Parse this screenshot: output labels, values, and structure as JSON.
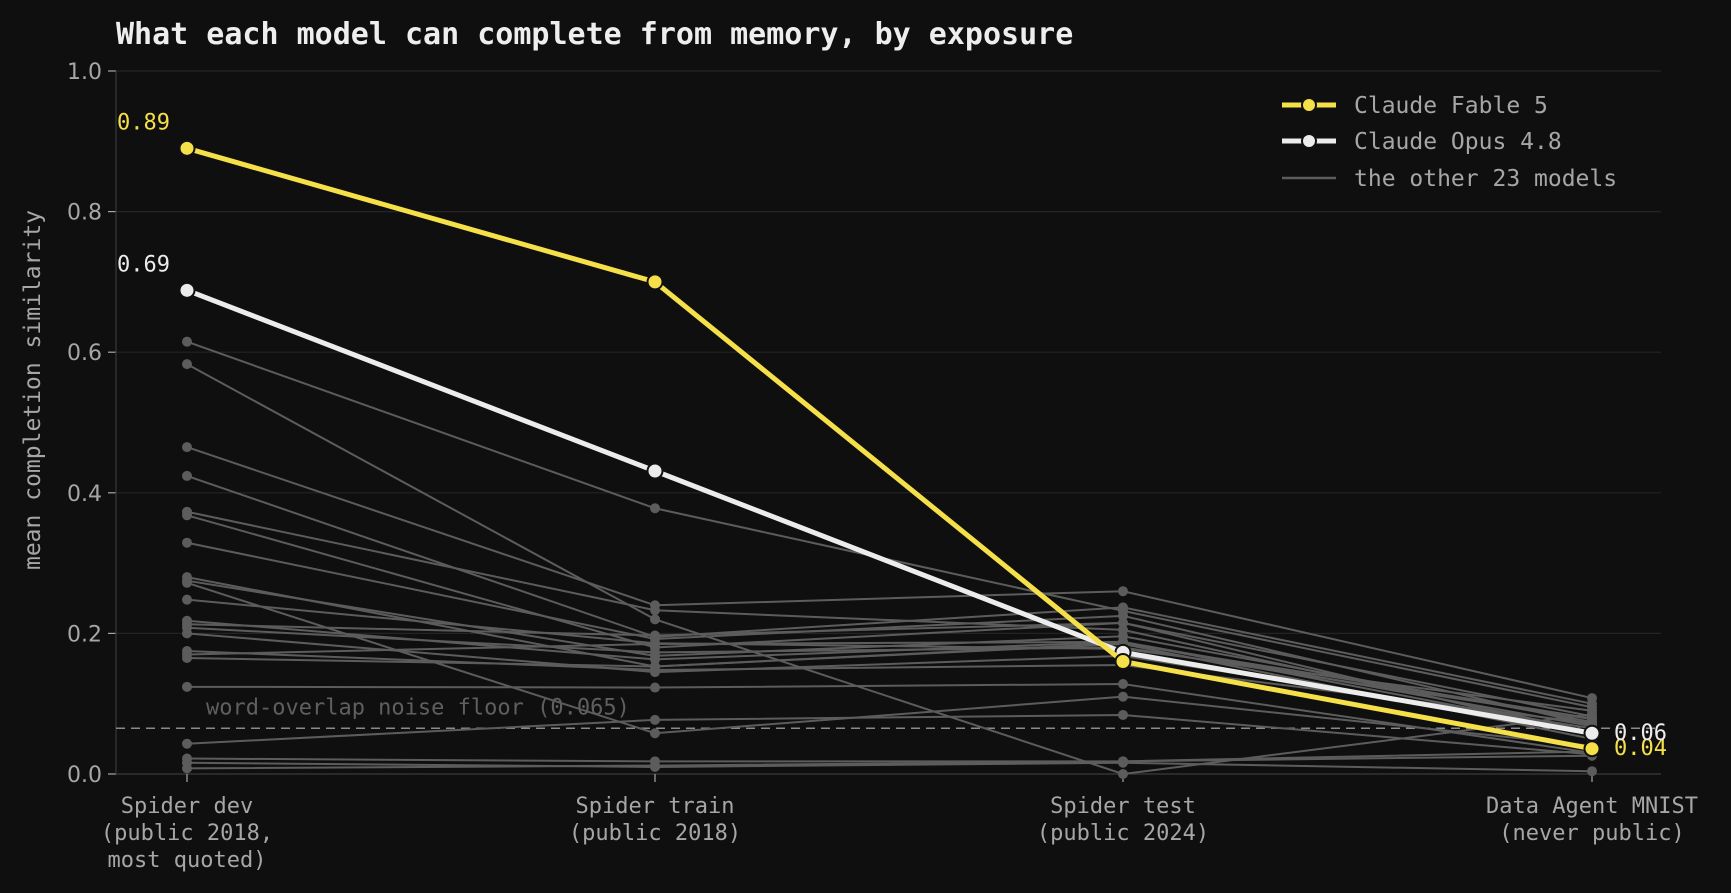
{
  "chart_data": {
    "type": "line",
    "title": "What each model can complete from memory, by exposure",
    "ylabel": "mean completion similarity",
    "xlabel": "",
    "ylim": [
      0,
      1.0
    ],
    "yticks": [
      "0.0",
      "0.2",
      "0.4",
      "0.6",
      "0.8",
      "1.0"
    ],
    "grid": true,
    "legend_position": "top-right",
    "categories": [
      [
        "Spider dev",
        "(public 2018,",
        "most quoted)"
      ],
      [
        "Spider train",
        "(public 2018)"
      ],
      [
        "Spider test",
        "(public 2024)"
      ],
      [
        "Data Agent MNIST",
        "(never public)"
      ]
    ],
    "series": [
      {
        "name": "Claude Fable 5",
        "color": "#f5e04a",
        "values": [
          0.89,
          0.7,
          0.16,
          0.036
        ],
        "highlight": true,
        "start_label": "0.89",
        "end_label": "0.04"
      },
      {
        "name": "Claude Opus 4.8",
        "color": "#ececec",
        "values": [
          0.688,
          0.431,
          0.173,
          0.058
        ],
        "highlight": true,
        "start_label": "0.69",
        "end_label": "0.06"
      }
    ],
    "background_series": {
      "name": "the other 23 models",
      "color": "#5c5c5c",
      "values": [
        [
          0.615,
          0.378,
          0.232,
          0.095
        ],
        [
          0.583,
          0.22,
          0.0,
          0.085
        ],
        [
          0.465,
          0.24,
          0.26,
          0.108
        ],
        [
          0.424,
          0.195,
          0.237,
          0.1
        ],
        [
          0.373,
          0.233,
          0.205,
          0.06
        ],
        [
          0.368,
          0.18,
          0.215,
          0.082
        ],
        [
          0.329,
          0.192,
          0.225,
          0.07
        ],
        [
          0.28,
          0.153,
          0.186,
          0.079
        ],
        [
          0.275,
          0.168,
          0.196,
          0.074
        ],
        [
          0.272,
          0.058,
          0.11,
          0.04
        ],
        [
          0.248,
          0.186,
          0.178,
          0.09
        ],
        [
          0.218,
          0.163,
          0.188,
          0.06
        ],
        [
          0.213,
          0.197,
          0.215,
          0.055
        ],
        [
          0.208,
          0.173,
          0.18,
          0.078
        ],
        [
          0.2,
          0.145,
          0.168,
          0.065
        ],
        [
          0.175,
          0.148,
          0.155,
          0.072
        ],
        [
          0.17,
          0.185,
          0.188,
          0.068
        ],
        [
          0.165,
          0.153,
          0.185,
          0.05
        ],
        [
          0.124,
          0.123,
          0.128,
          0.03
        ],
        [
          0.043,
          0.077,
          0.084,
          0.028
        ],
        [
          0.022,
          0.018,
          0.018,
          0.032
        ],
        [
          0.016,
          0.01,
          0.016,
          0.004
        ],
        [
          0.008,
          0.012,
          0.018,
          0.026
        ]
      ]
    },
    "noise_floor": {
      "value": 0.065,
      "label": "word-overlap noise floor (0.065)"
    }
  }
}
